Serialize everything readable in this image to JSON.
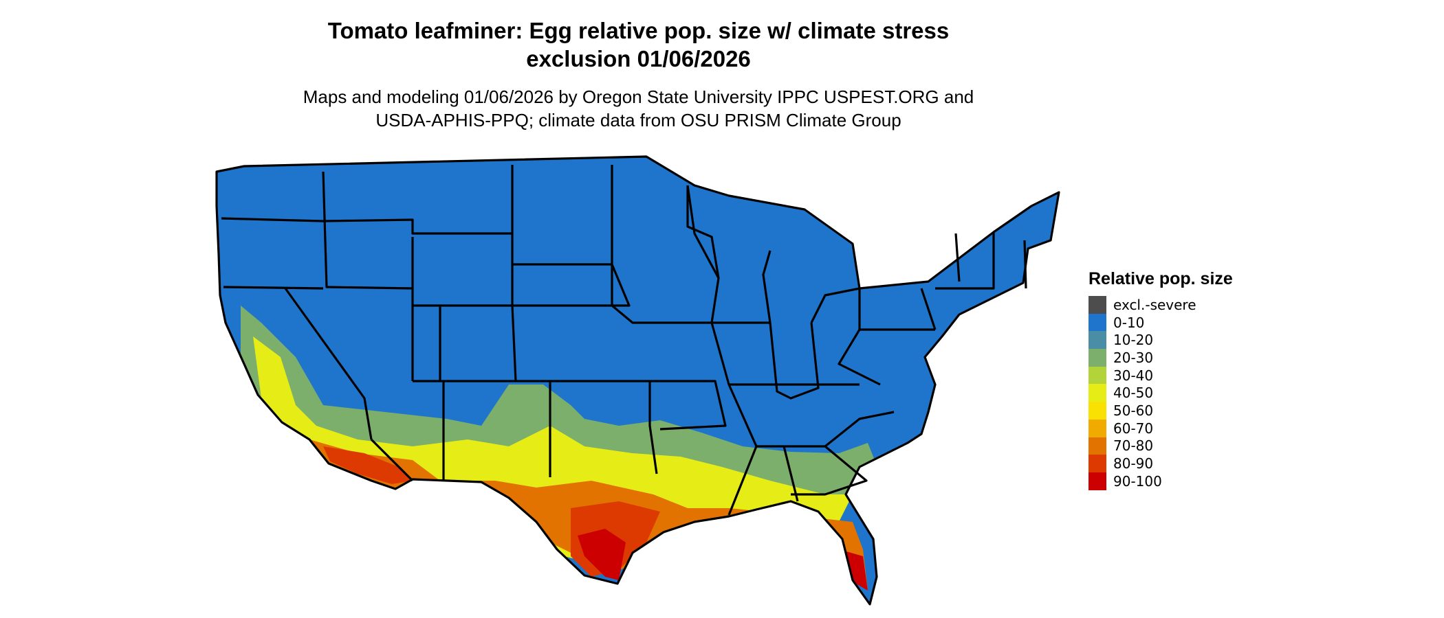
{
  "title_line1": "Tomato leafminer: Egg relative pop. size w/ climate stress",
  "title_line2": "exclusion 01/06/2026",
  "subtitle_line1": "Maps and modeling 01/06/2026 by Oregon State University IPPC USPEST.ORG and",
  "subtitle_line2": "USDA-APHIS-PPQ; climate data from OSU PRISM Climate Group",
  "legend": {
    "title": "Relative pop. size",
    "items": [
      {
        "label": "excl.-severe",
        "color": "#4d4d4d"
      },
      {
        "label": "0-10",
        "color": "#1f74cc"
      },
      {
        "label": "10-20",
        "color": "#4a8ea5"
      },
      {
        "label": "20-30",
        "color": "#7cae6c"
      },
      {
        "label": "30-40",
        "color": "#b3d33a"
      },
      {
        "label": "40-50",
        "color": "#e6ec15"
      },
      {
        "label": "50-60",
        "color": "#f9e103"
      },
      {
        "label": "60-70",
        "color": "#f1ab00"
      },
      {
        "label": "70-80",
        "color": "#e27300"
      },
      {
        "label": "80-90",
        "color": "#dc3a00"
      },
      {
        "label": "90-100",
        "color": "#cc0000"
      }
    ]
  }
}
